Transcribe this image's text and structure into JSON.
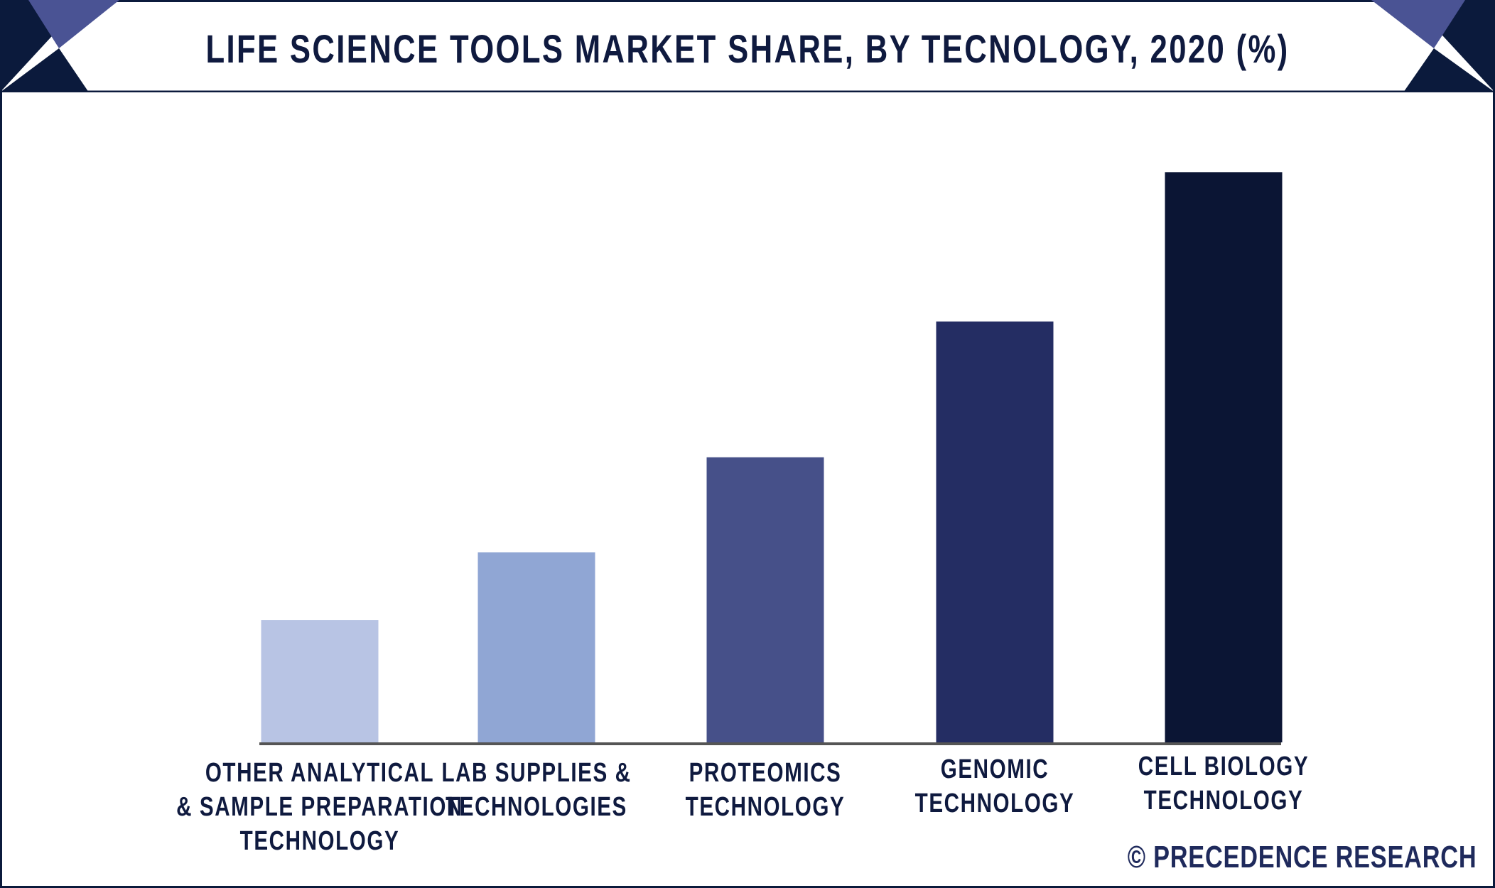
{
  "chart_data": {
    "type": "bar",
    "title": "LIFE SCIENCE TOOLS MARKET SHARE, BY TECNOLOGY, 2020 (%)",
    "xlabel": "",
    "ylabel": "",
    "categories": [
      [
        "OTHER ANALYTICAL",
        "& SAMPLE PREPARATION",
        "TECHNOLOGY"
      ],
      [
        "LAB SUPPLIES &",
        "TECHNOLOGIES"
      ],
      [
        "PROTEOMICS",
        "TECHNOLOGY"
      ],
      [
        "GENOMIC",
        "TECHNOLOGY"
      ],
      [
        "CELL BIOLOGY",
        "TECHNOLOGY"
      ]
    ],
    "values": [
      9,
      14,
      21,
      31,
      42
    ],
    "ylim": [
      0,
      45
    ],
    "grid": false,
    "legend": "none",
    "colors": [
      "#b8c4e4",
      "#90a6d4",
      "#465089",
      "#242d63",
      "#0b1534"
    ]
  },
  "watermark": "© PRECEDENCE RESEARCH",
  "colors": {
    "frame": "#0b1a3c",
    "accent": "#4a5394",
    "axis": "#555555"
  }
}
